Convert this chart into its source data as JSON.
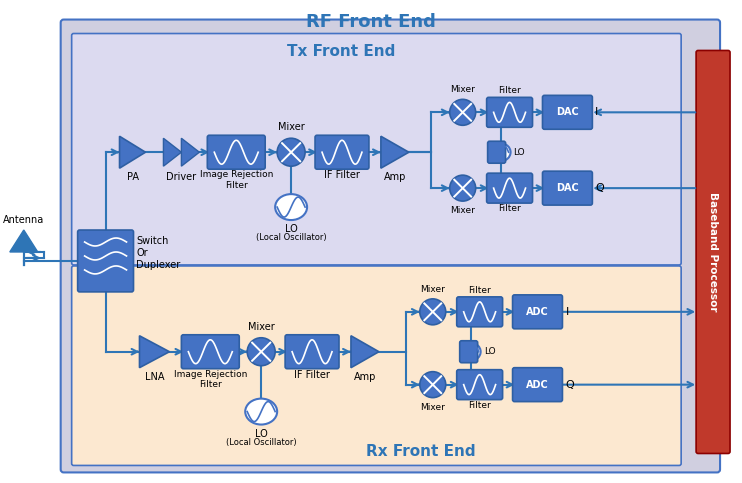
{
  "title": "RF Front End",
  "tx_label": "Tx Front End",
  "rx_label": "Rx Front End",
  "bb_label": "Baseband Processor",
  "bg_outer": "#d0cfe0",
  "bg_tx": "#dcdaf0",
  "bg_rx": "#fce8d0",
  "bg_bb": "#c0392b",
  "block_color": "#4472c4",
  "block_edge": "#2e5fa3",
  "line_color": "#2e75b6",
  "title_color": "#2e75b6",
  "figure_bg": "#ffffff",
  "outer_border_color": "#4472c4"
}
